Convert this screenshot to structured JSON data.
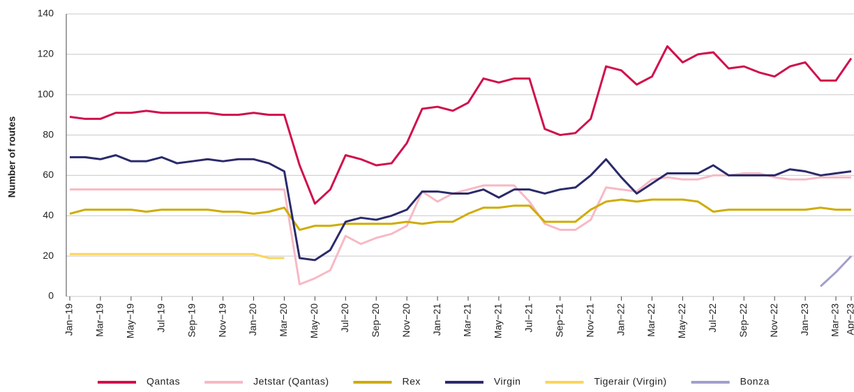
{
  "chart_data": {
    "type": "line",
    "y_label": "Number of routes",
    "categories": [
      "Jan−19",
      null,
      "Mar−19",
      null,
      "May−19",
      null,
      "Jul−19",
      null,
      "Sep−19",
      null,
      "Nov−19",
      null,
      "Jan−20",
      null,
      "Mar−20",
      null,
      "May−20",
      null,
      "Jul−20",
      null,
      "Sep−20",
      null,
      "Nov−20",
      null,
      "Jan−21",
      null,
      "Mar−21",
      null,
      "May−21",
      null,
      "Jul−21",
      null,
      "Sep−21",
      null,
      "Nov−21",
      null,
      "Jan−22",
      null,
      "Mar−22",
      null,
      "May−22",
      null,
      "Jul−22",
      null,
      "Sep−22",
      null,
      "Nov−22",
      null,
      "Jan−23",
      null,
      "Mar−23",
      "Apr−23"
    ],
    "series": [
      {
        "name": "Qantas",
        "color": "#d0104c",
        "values": [
          89,
          88,
          88,
          91,
          91,
          92,
          91,
          91,
          91,
          91,
          90,
          90,
          91,
          90,
          90,
          65,
          46,
          53,
          70,
          68,
          65,
          66,
          76,
          93,
          94,
          92,
          96,
          108,
          106,
          108,
          108,
          83,
          80,
          81,
          88,
          114,
          112,
          105,
          109,
          124,
          116,
          120,
          121,
          113,
          114,
          111,
          109,
          114,
          116,
          107,
          107,
          118
        ]
      },
      {
        "name": "Jetstar (Qantas)",
        "color": "#f7b9c4",
        "values": [
          53,
          53,
          53,
          53,
          53,
          53,
          53,
          53,
          53,
          53,
          53,
          53,
          53,
          53,
          53,
          6,
          9,
          13,
          30,
          26,
          29,
          31,
          35,
          52,
          47,
          51,
          53,
          55,
          55,
          55,
          47,
          36,
          33,
          33,
          38,
          54,
          53,
          52,
          58,
          59,
          58,
          58,
          60,
          60,
          61,
          61,
          59,
          58,
          58,
          59,
          59,
          59
        ]
      },
      {
        "name": "Rex",
        "color": "#cfac05",
        "values": [
          41,
          43,
          43,
          43,
          43,
          42,
          43,
          43,
          43,
          43,
          42,
          42,
          41,
          42,
          44,
          33,
          35,
          35,
          36,
          36,
          36,
          36,
          37,
          36,
          37,
          37,
          41,
          44,
          44,
          45,
          45,
          37,
          37,
          37,
          43,
          47,
          48,
          47,
          48,
          48,
          48,
          47,
          42,
          43,
          43,
          43,
          43,
          43,
          43,
          44,
          43,
          43
        ]
      },
      {
        "name": "Virgin",
        "color": "#2b2a6b",
        "values": [
          69,
          69,
          68,
          70,
          67,
          67,
          69,
          66,
          67,
          68,
          67,
          68,
          68,
          66,
          62,
          19,
          18,
          23,
          37,
          39,
          38,
          40,
          43,
          52,
          52,
          51,
          51,
          53,
          49,
          53,
          53,
          51,
          53,
          54,
          60,
          68,
          59,
          51,
          56,
          61,
          61,
          61,
          65,
          60,
          60,
          60,
          60,
          63,
          62,
          60,
          61,
          62
        ]
      },
      {
        "name": "Tigerair (Virgin)",
        "color": "#fad55c",
        "values": [
          21,
          21,
          21,
          21,
          21,
          21,
          21,
          21,
          21,
          21,
          21,
          21,
          21,
          19,
          19,
          null,
          null,
          null,
          null,
          null,
          null,
          null,
          null,
          null,
          null,
          null,
          null,
          null,
          null,
          null,
          null,
          null,
          null,
          null,
          null,
          null,
          null,
          null,
          null,
          null,
          null,
          null,
          null,
          null,
          null,
          null,
          null,
          null,
          null,
          null,
          null,
          null
        ]
      },
      {
        "name": "Bonza",
        "color": "#a09fcc",
        "values": [
          null,
          null,
          null,
          null,
          null,
          null,
          null,
          null,
          null,
          null,
          null,
          null,
          null,
          null,
          null,
          null,
          null,
          null,
          null,
          null,
          null,
          null,
          null,
          null,
          null,
          null,
          null,
          null,
          null,
          null,
          null,
          null,
          null,
          null,
          null,
          null,
          null,
          null,
          null,
          null,
          null,
          null,
          null,
          null,
          null,
          null,
          null,
          null,
          null,
          5,
          12,
          20
        ]
      }
    ],
    "ylim": [
      0,
      140
    ],
    "yticks": [
      0,
      20,
      40,
      60,
      80,
      100,
      120,
      140
    ],
    "grid": true,
    "legend": "bottom"
  }
}
